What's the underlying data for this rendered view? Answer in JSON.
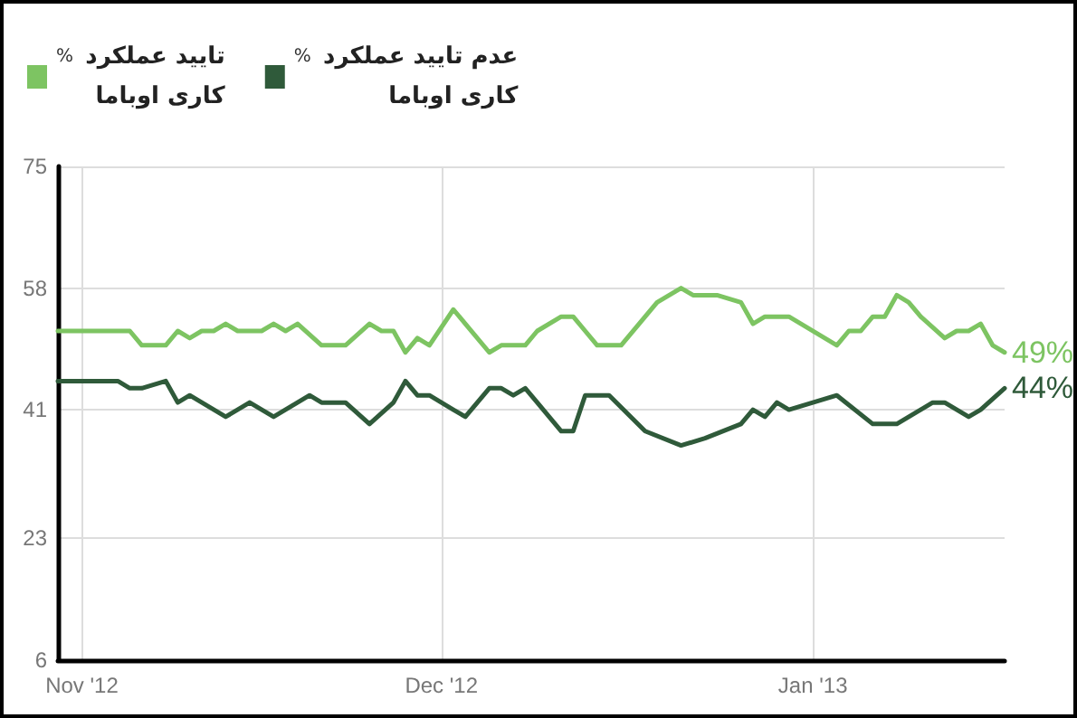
{
  "chart_data": {
    "type": "line",
    "ylabel": "%",
    "legend": "top left",
    "grid": true,
    "marker": "none",
    "line_style": "solid",
    "xlim": [
      "2012-10-30",
      "2013-01-17"
    ],
    "xticks": [
      {
        "value": "2012-11-01",
        "label": "Nov '12"
      },
      {
        "value": "2012-12-01",
        "label": "Dec '12"
      },
      {
        "value": "2013-01-01",
        "label": "Jan '13"
      }
    ],
    "ylim": [
      6,
      75
    ],
    "yticks": [
      6,
      23,
      41,
      58,
      75
    ],
    "series": [
      {
        "name": "تایید عملکرد\nکاری اوباما",
        "color": "#7dc462",
        "x": [
          "2012-10-30",
          "2012-11-05",
          "2012-11-06",
          "2012-11-08",
          "2012-11-09",
          "2012-11-10",
          "2012-11-11",
          "2012-11-12",
          "2012-11-13",
          "2012-11-14",
          "2012-11-16",
          "2012-11-17",
          "2012-11-18",
          "2012-11-19",
          "2012-11-21",
          "2012-11-23",
          "2012-11-25",
          "2012-11-26",
          "2012-11-27",
          "2012-11-28",
          "2012-11-29",
          "2012-11-30",
          "2012-12-02",
          "2012-12-03",
          "2012-12-05",
          "2012-12-06",
          "2012-12-08",
          "2012-12-09",
          "2012-12-11",
          "2012-12-12",
          "2012-12-13",
          "2012-12-14",
          "2012-12-16",
          "2012-12-19",
          "2012-12-21",
          "2012-12-22",
          "2012-12-24",
          "2012-12-26",
          "2012-12-27",
          "2012-12-28",
          "2012-12-29",
          "2012-12-30",
          "2013-01-03",
          "2013-01-04",
          "2013-01-05",
          "2013-01-06",
          "2013-01-07",
          "2013-01-08",
          "2013-01-09",
          "2013-01-10",
          "2013-01-12",
          "2013-01-13",
          "2013-01-14",
          "2013-01-15",
          "2013-01-16",
          "2013-01-17"
        ],
        "values": [
          52,
          52,
          50,
          50,
          52,
          51,
          52,
          52,
          53,
          52,
          52,
          53,
          52,
          53,
          50,
          50,
          53,
          52,
          52,
          49,
          51,
          50,
          55,
          53,
          49,
          50,
          50,
          52,
          54,
          54,
          52,
          50,
          50,
          56,
          58,
          57,
          57,
          56,
          53,
          54,
          54,
          54,
          50,
          52,
          52,
          54,
          54,
          57,
          56,
          54,
          51,
          52,
          52,
          53,
          50,
          49
        ],
        "value_labels": [
          null,
          null,
          null,
          null,
          null,
          null,
          null,
          null,
          null,
          null,
          null,
          null,
          null,
          null,
          null,
          null,
          null,
          null,
          null,
          null,
          null,
          null,
          null,
          null,
          null,
          null,
          null,
          null,
          null,
          null,
          null,
          null,
          null,
          null,
          null,
          null,
          null,
          null,
          null,
          null,
          null,
          null,
          null,
          null,
          null,
          null,
          null,
          null,
          null,
          null,
          null,
          null,
          null,
          null,
          null,
          "49%"
        ]
      },
      {
        "name": "عدم تایید عملکرد\nکاری اوباما",
        "color": "#2f5a3a",
        "x": [
          "2012-10-30",
          "2012-11-04",
          "2012-11-05",
          "2012-11-06",
          "2012-11-08",
          "2012-11-09",
          "2012-11-10",
          "2012-11-13",
          "2012-11-15",
          "2012-11-17",
          "2012-11-20",
          "2012-11-21",
          "2012-11-23",
          "2012-11-25",
          "2012-11-27",
          "2012-11-28",
          "2012-11-29",
          "2012-11-30",
          "2012-12-02",
          "2012-12-03",
          "2012-12-05",
          "2012-12-06",
          "2012-12-07",
          "2012-12-08",
          "2012-12-09",
          "2012-12-11",
          "2012-12-12",
          "2012-12-13",
          "2012-12-14",
          "2012-12-15",
          "2012-12-18",
          "2012-12-21",
          "2012-12-23",
          "2012-12-26",
          "2012-12-27",
          "2012-12-28",
          "2012-12-29",
          "2012-12-30",
          "2013-01-03",
          "2013-01-06",
          "2013-01-08",
          "2013-01-11",
          "2013-01-12",
          "2013-01-14",
          "2013-01-15",
          "2013-01-17"
        ],
        "values": [
          45,
          45,
          44,
          44,
          45,
          42,
          43,
          40,
          42,
          40,
          43,
          42,
          42,
          39,
          42,
          45,
          43,
          43,
          41,
          40,
          44,
          44,
          43,
          44,
          42,
          38,
          38,
          43,
          43,
          43,
          38,
          36,
          37,
          39,
          41,
          40,
          42,
          41,
          43,
          39,
          39,
          42,
          42,
          40,
          41,
          44
        ],
        "value_labels": [
          null,
          null,
          null,
          null,
          null,
          null,
          null,
          null,
          null,
          null,
          null,
          null,
          null,
          null,
          null,
          null,
          null,
          null,
          null,
          null,
          null,
          null,
          null,
          null,
          null,
          null,
          null,
          null,
          null,
          null,
          null,
          null,
          null,
          null,
          null,
          null,
          null,
          null,
          null,
          null,
          null,
          null,
          null,
          null,
          null,
          "44%"
        ]
      }
    ]
  }
}
